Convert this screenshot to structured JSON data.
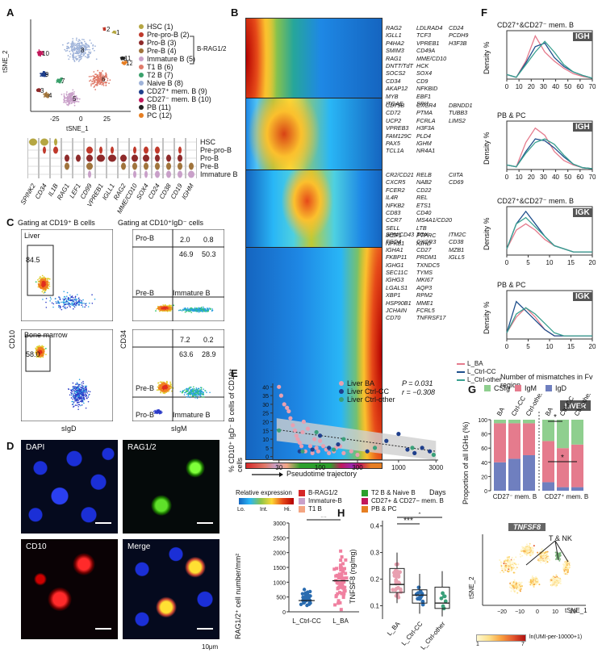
{
  "panels": {
    "A": "A",
    "B": "B",
    "C": "C",
    "D": "D",
    "E": "E",
    "F": "F",
    "G": "G",
    "H": "H"
  },
  "panelA": {
    "xlabel": "tSNE_1",
    "ylabel": "tSNE_2",
    "xticks": [
      "-25",
      "0",
      "25"
    ],
    "clusters": [
      {
        "label": "HSC (1)",
        "color": "#b5a642",
        "num": "1"
      },
      {
        "label": "Pre-pro-B (2)",
        "color": "#c0392b",
        "num": "2"
      },
      {
        "label": "Pro-B (3)",
        "color": "#8e2a2a",
        "num": "3"
      },
      {
        "label": "Pre-B (4)",
        "color": "#a0743c",
        "num": "4"
      },
      {
        "label": "Immature B (5)",
        "color": "#c9a0c9",
        "num": "5"
      },
      {
        "label": "T1 B (6)",
        "color": "#e07b6a",
        "num": "6"
      },
      {
        "label": "T2 B (7)",
        "color": "#3aa06b",
        "num": "7"
      },
      {
        "label": "Naive B (8)",
        "color": "#9fb3d9",
        "num": "8"
      },
      {
        "label": "CD27⁺ mem. B (9)",
        "color": "#1f3f8c",
        "num": "9"
      },
      {
        "label": "CD27⁻ mem. B (10)",
        "color": "#c2185b",
        "num": "10"
      },
      {
        "label": "PB (11)",
        "color": "#222222",
        "num": "11"
      },
      {
        "label": "PC (12)",
        "color": "#e67e22",
        "num": "12"
      }
    ],
    "bracket_label": "B-RAG1/2",
    "violin_genes": [
      "SPINK2",
      "CD34",
      "IL1B",
      "RAG1",
      "LEF1",
      "CD99",
      "VPREB1",
      "IGLL1",
      "RAG2",
      "MME/CD10",
      "SOX4",
      "CD24",
      "CD38",
      "CD19",
      "IGHM"
    ],
    "violin_rows": [
      "HSC",
      "Pre-pro-B",
      "Pro-B",
      "Pre-B",
      "Immature B"
    ]
  },
  "panelB": {
    "genes_col1": [
      "RAG2\nIGLL1\nP4HA2\nSMIM3\nRAG1\nDNTT/TdT\nSOCS2\nCD34\nAKAP12\nMYB\nITGAE",
      "CD79B\nCD72\nUCP2\nVPREB3\nFAM129C\nPAX5\nTCL1A",
      "CR2/CD21\nCXCR5\nFCER2\nIL4R\nNFKB2\nCD83\nCCR7\nSELL\nIKZF1\nNFKB1",
      "SPN/CD43\nFGD4\nIGHA1\nFKBP11\nIGHG1\nSEC11C\nIGHG3\nLGALS1\nXBP1\nHSP90B1\nJCHAIN\nCD70"
    ],
    "genes_col2": [
      "LDLRAD4\nTCF3\nVPREB1\nCD49A\nMME/CD10\nHCK\nSOX4\nCD9\nNFKBID\nEBF1\nSPI1",
      "CXCR4\nPTMA\nFCRLA\nH3F3A\nPLD4\nIGHM\nNR4A1",
      "RELB\nNAB2\nCD22\nREL\nETS1\nCD40\nMS4A1/CD20\nLTB\nPTPRC\nIGHD",
      "TOX\nCXCR3\nCD27\nPRDM1\nTXNDC5\nTYMS\nMKI67\nAQP3\nRPM2\nMME1\nFCRL5\nTNFRSF17"
    ],
    "genes_col3": [
      "CD24\nPCDH9\nH3F3B",
      "DBNDD1\nTUBB3\nLIMS2",
      "CIITA\nCD69",
      "",
      "ITM2C\nCD38\nMZB1\nIGLL5"
    ],
    "xlabel": "Pseudotime trajectory",
    "cbar_title": "Relative expression",
    "cbar_ticks": [
      "Lo.",
      "Int.",
      "Hi."
    ],
    "legend": [
      {
        "label": "B-RAG1/2",
        "color": "#d62728"
      },
      {
        "label": "T2 B & Naive B",
        "color": "#2ca02c"
      },
      {
        "label": "Immature-B",
        "color": "#c9a0c9"
      },
      {
        "label": "CD27+ & CD27− mem. B",
        "color": "#c2185b"
      },
      {
        "label": "T1 B",
        "color": "#f4a582"
      },
      {
        "label": "PB & PC",
        "color": "#e67e22"
      }
    ]
  },
  "panelC": {
    "gate_left": "Gating at CD19⁺ B cells",
    "gate_right": "Gating at CD10⁺IgD⁻ cells",
    "liver": "Liver",
    "bm": "Bone marrow",
    "liver_pct": "84.5",
    "bm_pct": "58.0",
    "liver_q": [
      "2.0",
      "0.8",
      "46.9",
      "50.3"
    ],
    "bm_q": [
      "7.2",
      "0.2",
      "63.6",
      "28.9"
    ],
    "prob": "Pro-B",
    "preb": "Pre-B",
    "immb": "Immature B",
    "ylab_left": "CD10",
    "ylab_right": "CD34",
    "xlab_left": "sIgD",
    "xlab_right": "sIgM"
  },
  "panelD": {
    "labels": [
      "DAPI",
      "RAG1/2",
      "CD10",
      "Merge"
    ],
    "scale": "10μm"
  },
  "panelE": {
    "legend": [
      {
        "label": "Liver BA",
        "color": "#e8a0b0"
      },
      {
        "label": "Liver Ctrl-CC",
        "color": "#1f3f8c"
      },
      {
        "label": "Liver Ctrl-other",
        "color": "#3aa07a"
      }
    ],
    "stats": [
      "P = 0.031",
      "r = −0.308"
    ],
    "ylabel": "% CD10⁺ IgD⁻ B cells of CD19⁺ cells",
    "xlabel": "Days",
    "yticks": [
      "0",
      "5",
      "10",
      "15",
      "20",
      "25",
      "30",
      "35",
      "40"
    ],
    "xticks": [
      "30",
      "100",
      "300",
      "1000",
      "3000"
    ],
    "bottom": {
      "ylabel": "RAG1/2⁺ cell number/mm²",
      "yticks": [
        "0",
        "500",
        "1000",
        "1500",
        "2000",
        "2500",
        "3000"
      ],
      "categories": [
        "L_Ctrl-CC",
        "L_BA"
      ],
      "sig": "**"
    }
  },
  "panelF": {
    "titles": [
      "CD27⁺&CD27⁻ mem. B",
      "PB & PC",
      "CD27⁺&CD27⁻ mem. B",
      "PB & PC"
    ],
    "tags": [
      "IGH",
      "IGH",
      "IGK",
      "IGK"
    ],
    "ylabel": "Density %",
    "xticks_top": [
      "0",
      "10",
      "20",
      "30",
      "40",
      "50",
      "60",
      "70"
    ],
    "xticks_bot": [
      "0",
      "5",
      "10",
      "15",
      "20"
    ],
    "xlabel": "Number of mismatches in Fv region",
    "legend": [
      {
        "label": "L_BA",
        "color": "#e57b8d"
      },
      {
        "label": "L_Ctrl-CC",
        "color": "#1f4f8c"
      },
      {
        "label": "L_Ctrl-other",
        "color": "#3aa090"
      }
    ]
  },
  "panelG": {
    "legend": [
      {
        "label": "CSIg",
        "color": "#8fcf8f"
      },
      {
        "label": "IgM",
        "color": "#e57b8d"
      },
      {
        "label": "IgD",
        "color": "#6f7fbf"
      }
    ],
    "tag": "LIVER",
    "groups": [
      "BA",
      "Ctrl-CC",
      "Ctrl-other"
    ],
    "ylabel": "Proportion of all IGHs (%)",
    "yticks": [
      "0",
      "20",
      "40",
      "60",
      "80",
      "100"
    ],
    "xcats": [
      "CD27⁻ mem. B",
      "CD27⁺ mem. B"
    ],
    "sig": "*"
  },
  "panelH": {
    "ylabel": "TNFSF8 (ng/mg)",
    "yticks": [
      "0.1",
      "0.2",
      "0.3",
      "0.4"
    ],
    "categories": [
      "L_BA",
      "L_Ctrl-CC",
      "L_Ctrl-other"
    ],
    "sig": [
      "***",
      "*"
    ]
  },
  "panelI": {
    "title": "TNFSF8",
    "annot": "T & NK",
    "ylabel": "tSNE_2",
    "xlabel": "tSNE_1",
    "xticks": [
      "−20",
      "−10",
      "0",
      "10",
      "20"
    ],
    "cbar": [
      "1",
      "7"
    ],
    "cbar_label": "ln(UMI-per-10000+1)"
  },
  "chart_data": [
    {
      "type": "scatter",
      "title": "",
      "xlabel": "Days",
      "ylabel": "% CD10⁺ IgD⁻ B cells of CD19⁺ cells",
      "log_x": true,
      "xlim": [
        25,
        3200
      ],
      "ylim": [
        -2,
        42
      ],
      "series": [
        {
          "name": "Liver BA",
          "x": [
            30,
            32,
            35,
            38,
            40,
            42,
            45,
            48,
            50,
            52,
            55,
            58,
            60,
            62,
            65,
            70,
            75,
            80,
            85,
            90,
            95,
            100,
            110,
            120,
            130,
            150,
            160,
            180,
            200,
            250,
            300
          ],
          "y": [
            40,
            35,
            30,
            28,
            26,
            22,
            18,
            15,
            12,
            10,
            8,
            6,
            14,
            20,
            3,
            16,
            6,
            2,
            10,
            5,
            3,
            9,
            6,
            4,
            2,
            3,
            5,
            6,
            2,
            3,
            1
          ],
          "color": "#e8a0b0"
        },
        {
          "name": "Liver Ctrl-CC",
          "x": [
            55,
            80,
            100,
            130,
            170,
            400,
            700,
            1000,
            1300,
            1600,
            2000,
            2500
          ],
          "y": [
            3,
            4,
            12,
            5,
            7,
            3,
            9,
            13,
            4,
            2,
            5,
            3
          ],
          "color": "#1f3f8c"
        },
        {
          "name": "Liver Ctrl-other",
          "x": [
            30,
            60,
            90,
            150,
            200,
            500,
            1500,
            2800
          ],
          "y": [
            15,
            3,
            14,
            4,
            10,
            5,
            5,
            1
          ],
          "color": "#3aa07a"
        }
      ]
    },
    {
      "type": "bar",
      "title": "",
      "ylabel": "RAG1/2⁺ cell number/mm²",
      "categories": [
        "L_Ctrl-CC",
        "L_BA"
      ],
      "values": [
        380,
        1050
      ],
      "ylim": [
        0,
        3000
      ]
    },
    {
      "type": "bar",
      "title": "",
      "ylabel": "Proportion of all IGHs (%)",
      "categories": [
        "CD27⁻ BA",
        "CD27⁻ Ctrl-CC",
        "CD27⁻ Ctrl-other",
        "CD27⁺ BA",
        "CD27⁺ Ctrl-CC",
        "CD27⁺ Ctrl-other"
      ],
      "series": [
        {
          "name": "IgD",
          "values": [
            40,
            45,
            50,
            12,
            5,
            5
          ]
        },
        {
          "name": "IgM",
          "values": [
            55,
            50,
            45,
            58,
            55,
            60
          ]
        },
        {
          "name": "CSIg",
          "values": [
            5,
            5,
            5,
            30,
            40,
            35
          ]
        }
      ],
      "ylim": [
        0,
        100
      ]
    },
    {
      "type": "box",
      "title": "",
      "ylabel": "TNFSF8 (ng/mg)",
      "categories": [
        "L_BA",
        "L_Ctrl-CC",
        "L_Ctrl-other"
      ],
      "medians": [
        0.18,
        0.14,
        0.11
      ],
      "q1": [
        0.15,
        0.11,
        0.09
      ],
      "q3": [
        0.24,
        0.16,
        0.17
      ],
      "ylim": [
        0.05,
        0.42
      ]
    }
  ]
}
